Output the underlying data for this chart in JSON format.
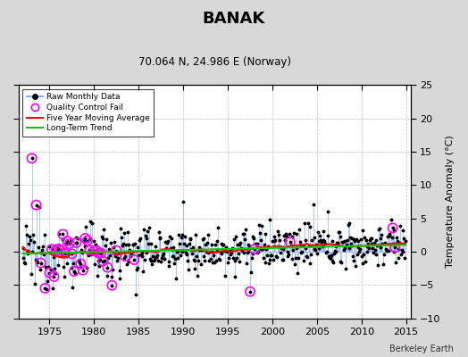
{
  "title": "BANAK",
  "subtitle": "70.064 N, 24.986 E (Norway)",
  "ylabel": "Temperature Anomaly (°C)",
  "credit": "Berkeley Earth",
  "ylim": [
    -10,
    25
  ],
  "yticks": [
    -10,
    -5,
    0,
    5,
    10,
    15,
    20,
    25
  ],
  "xlim": [
    1971.5,
    2015.5
  ],
  "xticks": [
    1975,
    1980,
    1985,
    1990,
    1995,
    2000,
    2005,
    2010,
    2015
  ],
  "bg_color": "#d8d8d8",
  "plot_bg_color": "#ffffff",
  "raw_line_color": "#6699ff",
  "raw_dot_color": "#000000",
  "qc_fail_color": "#ff00ff",
  "moving_avg_color": "#ff0000",
  "trend_color": "#00cc00",
  "seed": 12345
}
